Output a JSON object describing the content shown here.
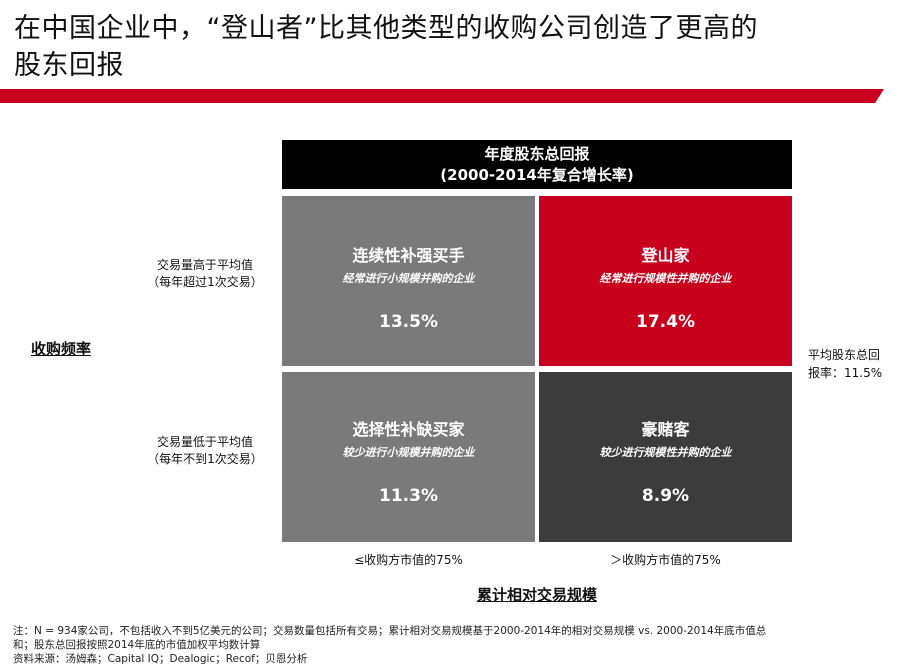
{
  "title": {
    "line1": "在中国企业中，“登山者”比其他类型的收购公司创造了更高的",
    "line2": "股东回报"
  },
  "header": {
    "line1": "年度股东总回报",
    "line2": "(2000-2014年复合增长率)"
  },
  "cells": {
    "top_left": {
      "title": "连续性补强买手",
      "subtitle": "经常进行小规模并购的企业",
      "value": "13.5%",
      "color": "#7a7a7a"
    },
    "top_right": {
      "title": "登山家",
      "subtitle": "经常进行规模性并购的企业",
      "value": "17.4%",
      "color": "#c8001e"
    },
    "bottom_left": {
      "title": "选择性补缺买家",
      "subtitle": "较少进行小规模并购的企业",
      "value": "11.3%",
      "color": "#7a7a7a"
    },
    "bottom_right": {
      "title": "豪赌客",
      "subtitle": "较少进行规模性并购的企业",
      "value": "8.9%",
      "color": "#3c3c3c"
    }
  },
  "row_labels": {
    "high": {
      "line1": "交易量高于平均值",
      "line2": "（每年超过1次交易）"
    },
    "low": {
      "line1": "交易量低于平均值",
      "line2": "（每年不到1次交易）"
    }
  },
  "y_axis_label": "收购频率",
  "x_axis_label": "累计相对交易规模",
  "col_labels": {
    "left": "≤收购方市值的75%",
    "right": "＞收购方市值的75%"
  },
  "average": {
    "line1": "平均股东总回",
    "line2": "报率：11.5%"
  },
  "notes": {
    "line1": "注：N = 934家公司，不包括收入不到5亿美元的公司；交易数量包括所有交易；累计相对交易规模基于2000-2014年的相对交易规模 vs. 2000-2014年底市值总",
    "line2": "和；股东总回报按照2014年底的市值加权平均数计算",
    "line3": "资料来源：汤姆森；Capital IQ；Dealogic；Recof；贝恩分析"
  },
  "colors": {
    "accent_red": "#c8001e",
    "header_black": "#000000"
  }
}
